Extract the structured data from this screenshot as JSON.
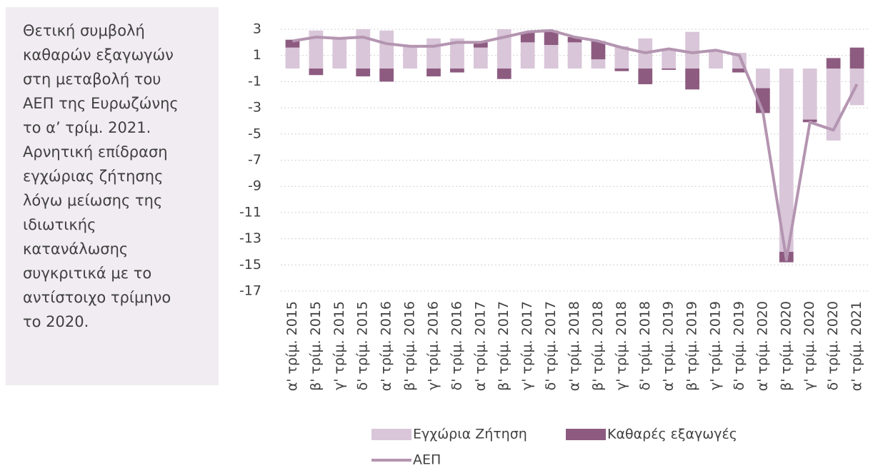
{
  "text_box": {
    "lines": [
      "Θετική συμβολή",
      "καθαρών εξαγωγών",
      "στη μεταβολή του",
      "ΑΕΠ της Ευρωζώνης",
      "το α’ τρίμ. 2021.",
      "Αρνητική επίδραση",
      "εγχώριας ζήτησης",
      "λόγω μείωσης της",
      "ιδιωτικής",
      "κατανάλωσης",
      "συγκριτικά με το",
      "αντίστοιχο τρίμηνο",
      "το 2020."
    ]
  },
  "chart_data": {
    "type": "bar",
    "categories": [
      "α' τρίμ. 2015",
      "β' τρίμ. 2015",
      "γ' τρίμ. 2015",
      "δ' τρίμ. 2015",
      "α' τρίμ. 2016",
      "β' τρίμ. 2016",
      "γ' τρίμ. 2016",
      "δ' τρίμ. 2016",
      "α' τρίμ. 2017",
      "β' τρίμ. 2017",
      "γ' τρίμ. 2017",
      "δ' τρίμ. 2017",
      "α' τρίμ. 2018",
      "β' τρίμ. 2018",
      "γ' τρίμ. 2018",
      "δ' τρίμ. 2018",
      "α' τρίμ. 2019",
      "β' τρίμ. 2019",
      "γ' τρίμ. 2019",
      "δ' τρίμ. 2019",
      "α' τρίμ. 2020",
      "β' τρίμ. 2020",
      "γ' τρίμ. 2020",
      "δ' τρίμ. 2020",
      "α' τρίμ. 2021"
    ],
    "series": [
      {
        "name": "Εγχώρια Ζήτηση",
        "type": "bar",
        "color": "#d9c6d9",
        "values": [
          1.6,
          2.9,
          2.3,
          3.0,
          2.9,
          1.7,
          2.3,
          2.3,
          1.6,
          3.0,
          2.0,
          1.8,
          2.0,
          0.7,
          1.7,
          2.3,
          1.5,
          2.8,
          1.3,
          1.2,
          -1.5,
          -14.0,
          -3.9,
          -5.5,
          -2.8
        ]
      },
      {
        "name": "Καθαρές εξαγωγές",
        "type": "bar",
        "color": "#8d5b80",
        "values": [
          0.6,
          -0.5,
          0,
          -0.6,
          -1.0,
          0,
          -0.6,
          -0.3,
          0.4,
          -0.8,
          0.8,
          1.1,
          0.4,
          1.4,
          -0.2,
          -1.2,
          -0.1,
          -1.6,
          0,
          -0.3,
          -1.9,
          -0.8,
          -0.2,
          0.8,
          1.6
        ]
      },
      {
        "name": "ΑΕΠ",
        "type": "line",
        "color": "#b495b1",
        "values": [
          2.1,
          2.4,
          2.3,
          2.4,
          1.9,
          1.7,
          1.7,
          2.0,
          2.0,
          2.4,
          2.8,
          2.9,
          2.4,
          2.1,
          1.6,
          1.2,
          1.5,
          1.2,
          1.4,
          1.0,
          -3.3,
          -14.6,
          -4.1,
          -4.7,
          -1.2
        ]
      }
    ],
    "ylim": [
      -17,
      3
    ],
    "yticks": [
      3,
      1,
      -1,
      -3,
      -5,
      -7,
      -9,
      -11,
      -13,
      -15,
      -17
    ],
    "grid": true
  }
}
